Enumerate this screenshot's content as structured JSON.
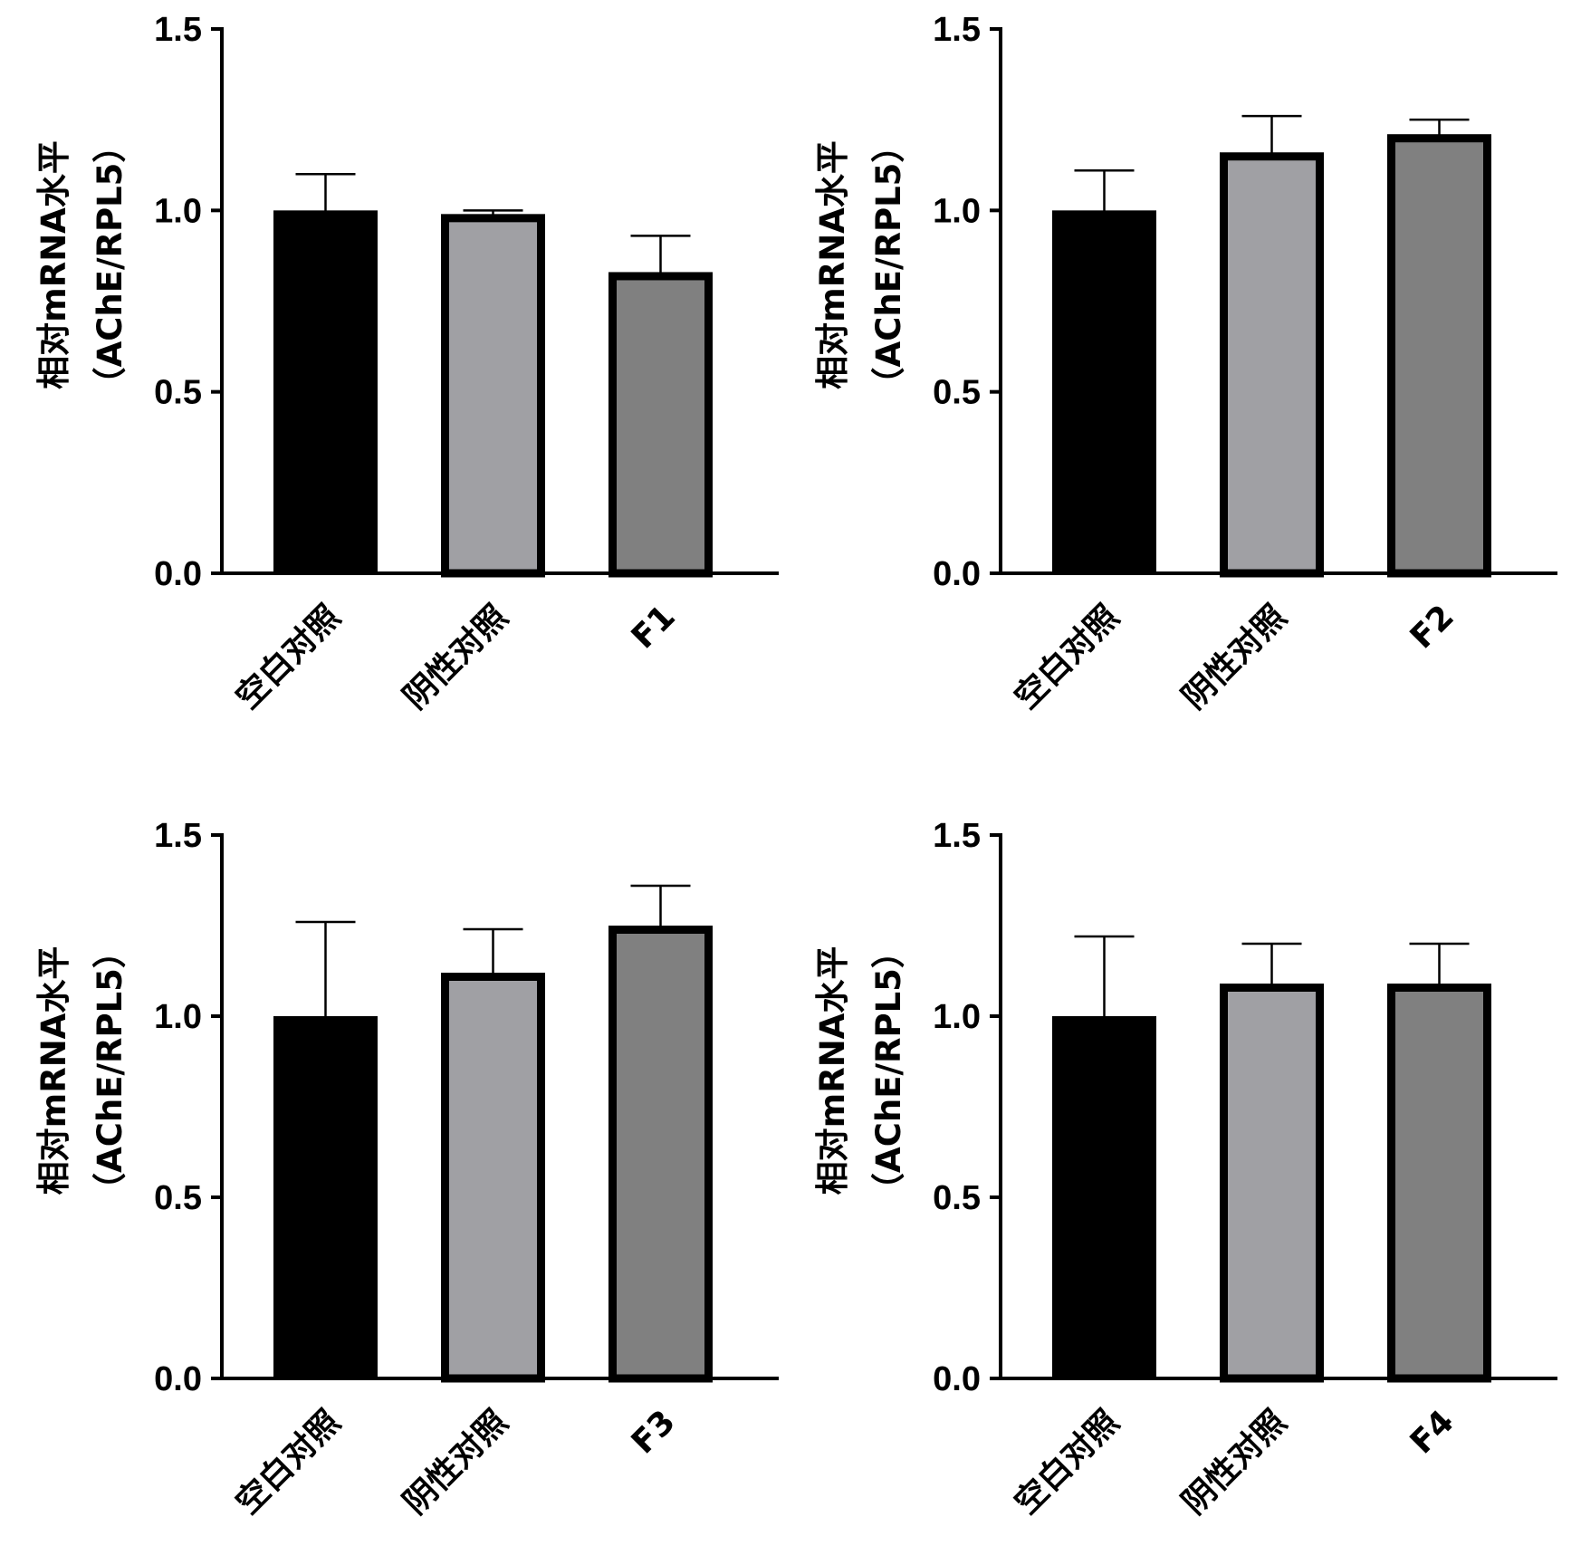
{
  "chart_data": [
    {
      "type": "bar",
      "categories": [
        "空白对照",
        "阴性对照",
        "F1"
      ],
      "values": [
        1.0,
        0.99,
        0.83
      ],
      "errors": [
        0.1,
        0.01,
        0.1
      ],
      "ylabel_lines": [
        "相对mRNA水平",
        "（AChE/RPL5）"
      ],
      "ylim": [
        0,
        1.5
      ],
      "yticks": [
        "0.0",
        "0.5",
        "1.0",
        "1.5"
      ],
      "colors": [
        "#000000",
        "#a0a0a4",
        "#808080"
      ]
    },
    {
      "type": "bar",
      "categories": [
        "空白对照",
        "阴性对照",
        "F2"
      ],
      "values": [
        1.0,
        1.16,
        1.21
      ],
      "errors": [
        0.11,
        0.1,
        0.04
      ],
      "ylabel_lines": [
        "相对mRNA水平",
        "（AChE/RPL5）"
      ],
      "ylim": [
        0,
        1.5
      ],
      "yticks": [
        "0.0",
        "0.5",
        "1.0",
        "1.5"
      ],
      "colors": [
        "#000000",
        "#a0a0a4",
        "#808080"
      ]
    },
    {
      "type": "bar",
      "categories": [
        "空白对照",
        "阴性对照",
        "F3"
      ],
      "values": [
        1.0,
        1.12,
        1.25
      ],
      "errors": [
        0.26,
        0.12,
        0.11
      ],
      "ylabel_lines": [
        "相对mRNA水平",
        "（AChE/RPL5）"
      ],
      "ylim": [
        0,
        1.5
      ],
      "yticks": [
        "0.0",
        "0.5",
        "1.0",
        "1.5"
      ],
      "colors": [
        "#000000",
        "#a0a0a4",
        "#808080"
      ]
    },
    {
      "type": "bar",
      "categories": [
        "空白对照",
        "阴性对照",
        "F4"
      ],
      "values": [
        1.0,
        1.09,
        1.09
      ],
      "errors": [
        0.22,
        0.11,
        0.11
      ],
      "ylabel_lines": [
        "相对mRNA水平",
        "（AChE/RPL5）"
      ],
      "ylim": [
        0,
        1.5
      ],
      "yticks": [
        "0.0",
        "0.5",
        "1.0",
        "1.5"
      ],
      "colors": [
        "#000000",
        "#a0a0a4",
        "#808080"
      ]
    }
  ]
}
